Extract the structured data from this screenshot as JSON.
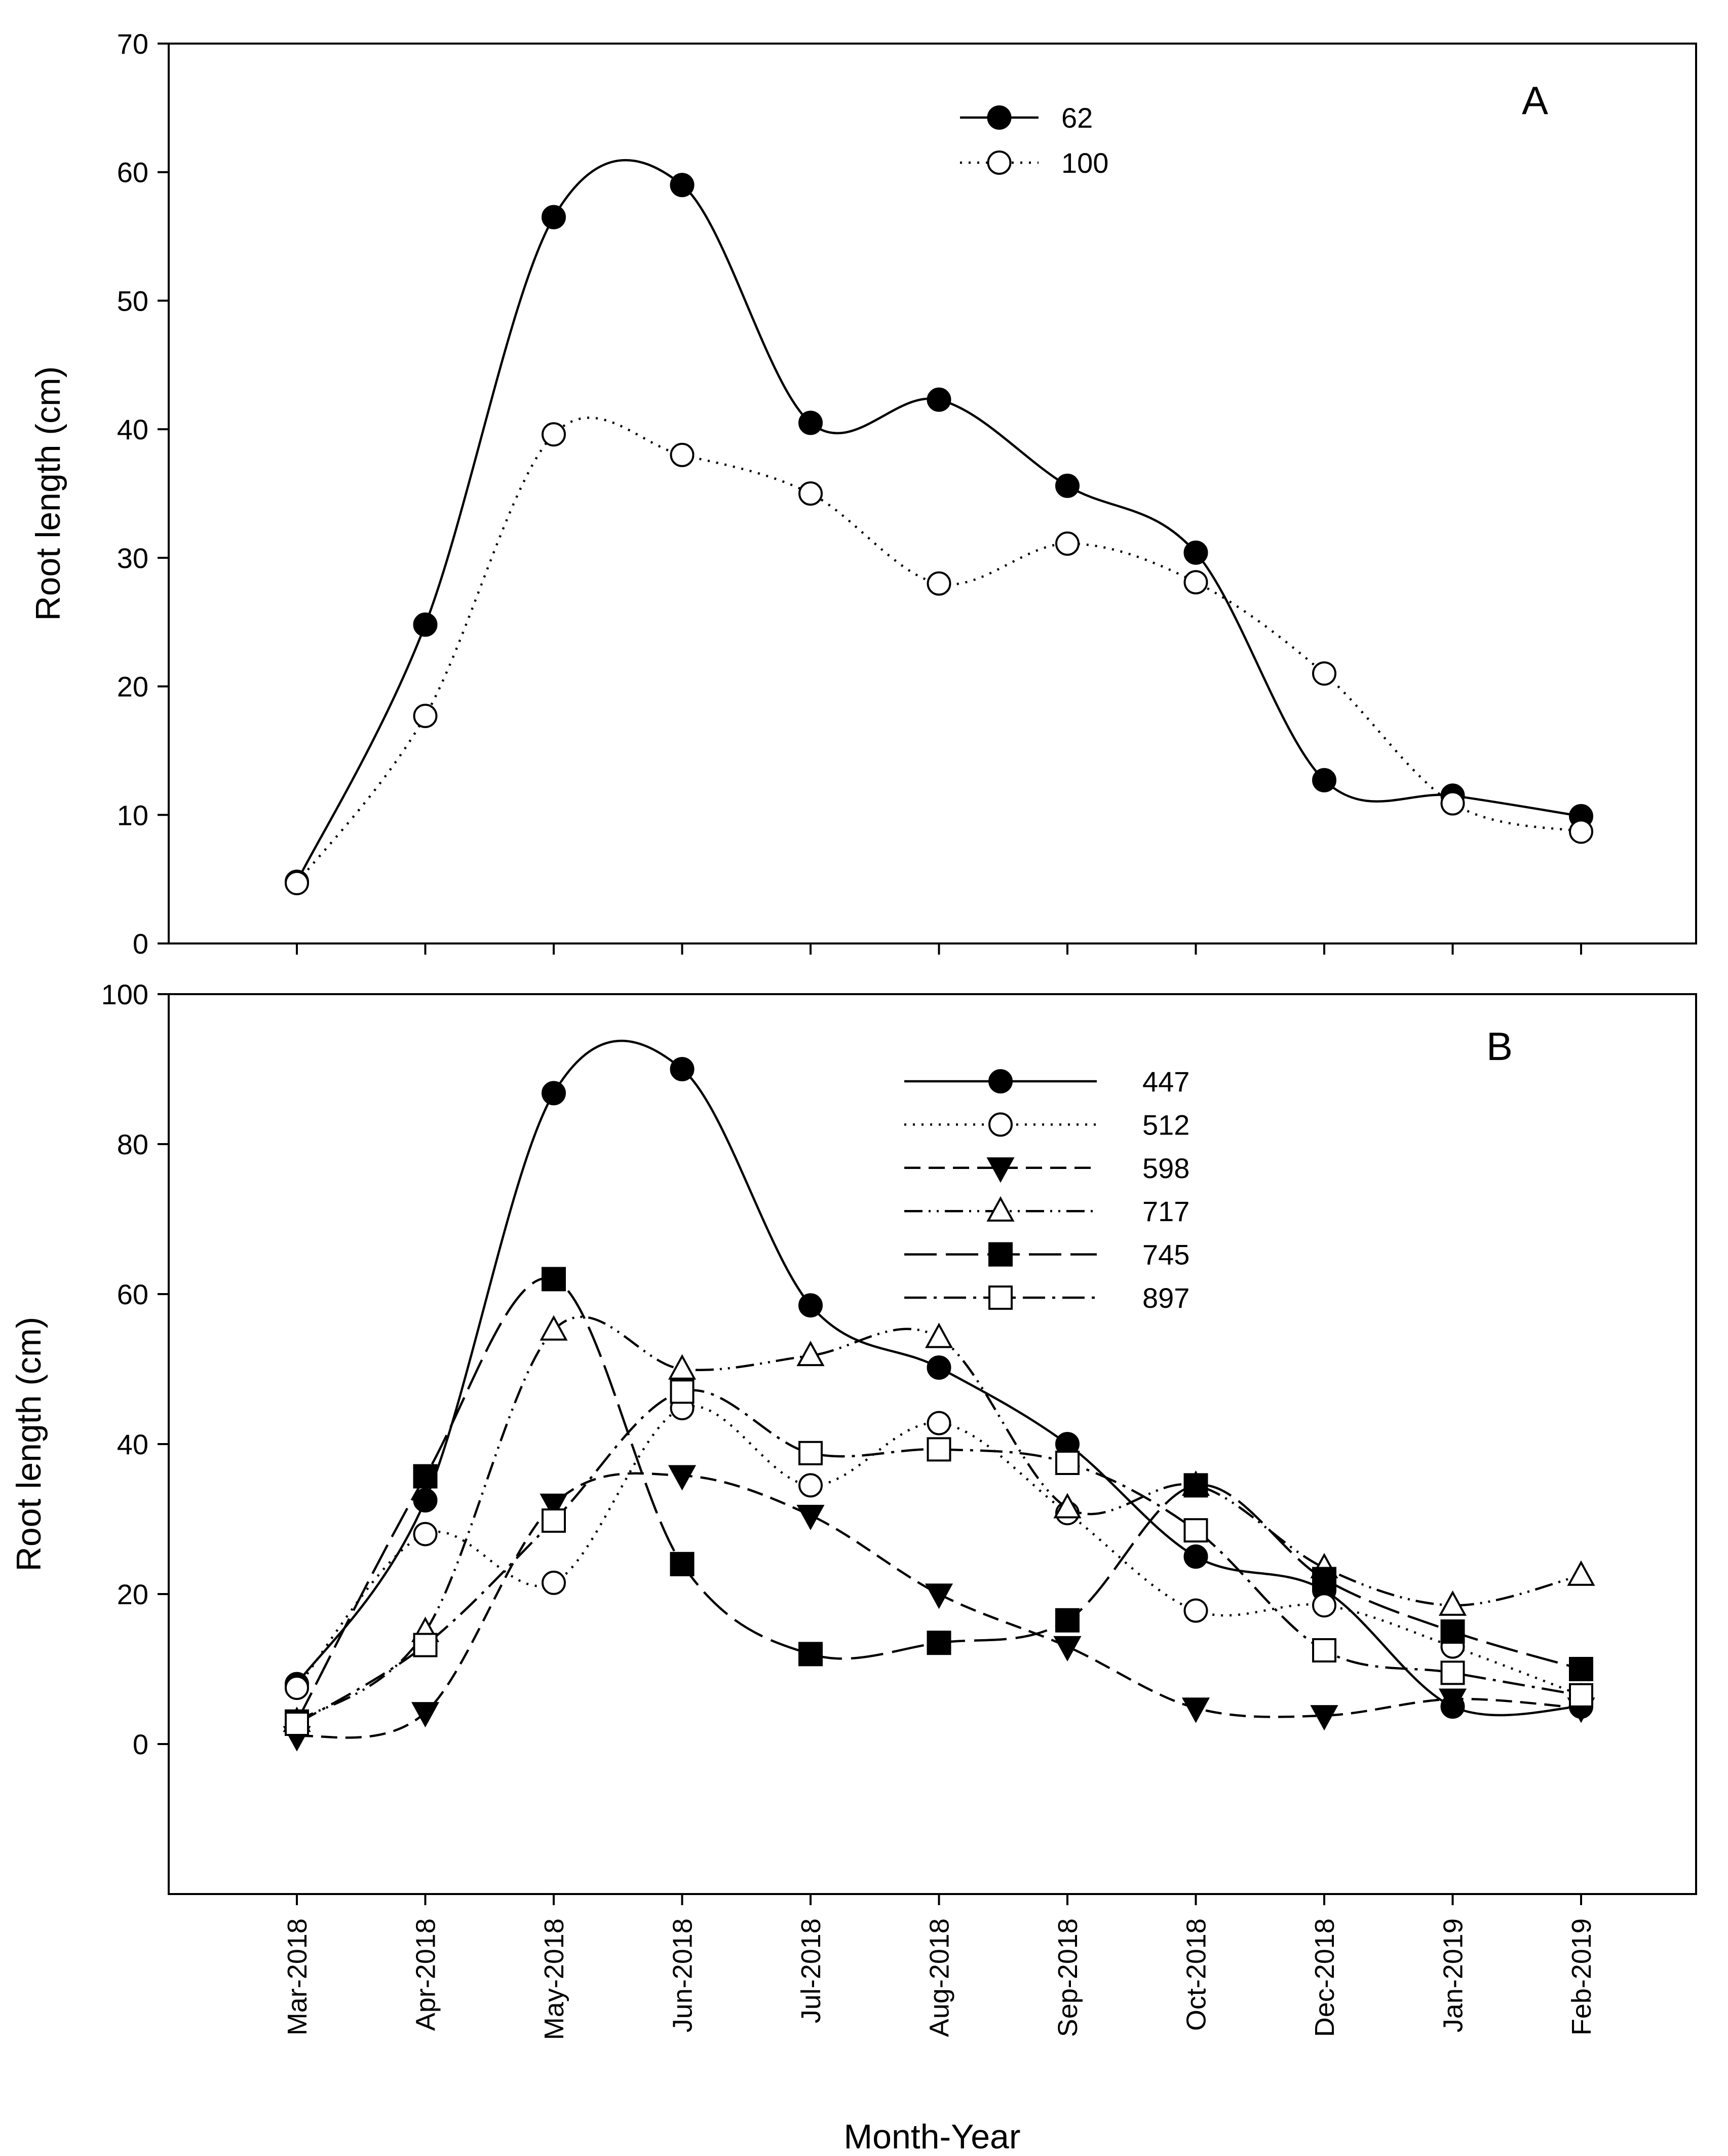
{
  "chart_data": [
    {
      "panel": "A",
      "type": "line",
      "ylabel": "Root length (cm)",
      "ylim": [
        0,
        70
      ],
      "yticks": [
        "0",
        "10",
        "20",
        "30",
        "40",
        "50",
        "60",
        "70"
      ],
      "categories": [
        "Mar-2018",
        "Apr-2018",
        "May-2018",
        "Jun-2018",
        "Jul-2018",
        "Aug-2018",
        "Sep-2018",
        "Oct-2018",
        "Dec-2018",
        "Jan-2019",
        "Feb-2019"
      ],
      "legend_position": "top-center",
      "series": [
        {
          "name": "62",
          "marker": "filled-circle",
          "dash": "solid",
          "values": [
            4.8,
            24.8,
            56.5,
            59.0,
            40.5,
            42.3,
            35.6,
            30.4,
            12.7,
            11.5,
            9.9
          ]
        },
        {
          "name": "100",
          "marker": "open-circle",
          "dash": "dotted",
          "values": [
            4.7,
            17.7,
            39.6,
            38.0,
            35.0,
            28.0,
            31.1,
            28.1,
            21.0,
            10.9,
            8.7
          ]
        }
      ]
    },
    {
      "panel": "B",
      "type": "line",
      "ylabel": "Root length (cm)",
      "xlabel": "Month-Year",
      "ylim": [
        -20,
        100
      ],
      "yticks": [
        "0",
        "20",
        "40",
        "60",
        "80",
        "100"
      ],
      "categories": [
        "Mar-2018",
        "Apr-2018",
        "May-2018",
        "Jun-2018",
        "Jul-2018",
        "Aug-2018",
        "Sep-2018",
        "Oct-2018",
        "Dec-2018",
        "Jan-2019",
        "Feb-2019"
      ],
      "legend_position": "top-center",
      "series": [
        {
          "name": "447",
          "marker": "filled-circle",
          "dash": "solid",
          "values": [
            8.0,
            32.5,
            86.8,
            90.0,
            58.5,
            50.2,
            40.0,
            25.0,
            20.5,
            5.0,
            5.0
          ]
        },
        {
          "name": "512",
          "marker": "open-circle",
          "dash": "dotted",
          "values": [
            7.5,
            28.0,
            21.5,
            44.8,
            34.5,
            42.8,
            30.8,
            17.8,
            18.5,
            13.0,
            6.5
          ]
        },
        {
          "name": "598",
          "marker": "filled-triangle-down",
          "dash": "dashed",
          "values": [
            1.0,
            4.2,
            32.0,
            35.8,
            30.5,
            20.0,
            13.0,
            4.8,
            3.8,
            6.0,
            4.8
          ]
        },
        {
          "name": "717",
          "marker": "open-triangle-up",
          "dash": "dash-dot-dot",
          "values": [
            3.0,
            15.0,
            55.2,
            50.0,
            51.8,
            54.2,
            31.5,
            34.5,
            23.5,
            18.5,
            22.5
          ]
        },
        {
          "name": "745",
          "marker": "filled-square",
          "dash": "long-dash",
          "values": [
            3.0,
            35.7,
            62.0,
            24.0,
            12.0,
            13.5,
            16.5,
            34.5,
            22.0,
            15.0,
            10.0
          ]
        },
        {
          "name": "897",
          "marker": "open-square",
          "dash": "dash-dot",
          "values": [
            2.7,
            13.2,
            29.8,
            47.0,
            38.8,
            39.3,
            37.5,
            28.5,
            12.5,
            9.5,
            6.5
          ]
        }
      ]
    }
  ],
  "panel_labels": {
    "a": "A",
    "b": "B"
  },
  "axis_titles": {
    "y_top": "Root length (cm)",
    "y_bottom": "Root length (cm)",
    "x": "Month-Year"
  }
}
